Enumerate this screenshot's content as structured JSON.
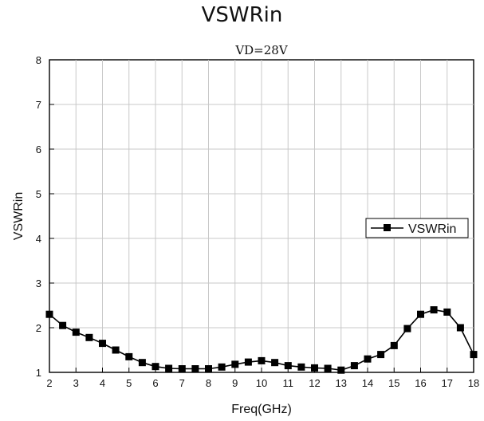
{
  "header": {
    "title": "VSWRin"
  },
  "chart_data": {
    "type": "line",
    "title": "VSWRin",
    "subtitle": "VD=28V",
    "xlabel": "Freq(GHz)",
    "ylabel": "VSWRin",
    "xlim": [
      2,
      18
    ],
    "ylim": [
      1,
      8
    ],
    "xticks": [
      2,
      3,
      4,
      5,
      6,
      7,
      8,
      9,
      10,
      11,
      12,
      13,
      14,
      15,
      16,
      17,
      18
    ],
    "yticks": [
      1,
      2,
      3,
      4,
      5,
      6,
      7,
      8
    ],
    "grid": true,
    "legend_position": "right-middle",
    "series": [
      {
        "name": "VSWRin",
        "color": "#000000",
        "marker": "square",
        "x": [
          2.0,
          2.5,
          3.0,
          3.5,
          4.0,
          4.5,
          5.0,
          5.5,
          6.0,
          6.5,
          7.0,
          7.5,
          8.0,
          8.5,
          9.0,
          9.5,
          10.0,
          10.5,
          11.0,
          11.5,
          12.0,
          12.5,
          13.0,
          13.5,
          14.0,
          14.5,
          15.0,
          15.5,
          16.0,
          16.5,
          17.0,
          17.5,
          18.0
        ],
        "y": [
          2.3,
          2.05,
          1.9,
          1.78,
          1.65,
          1.5,
          1.35,
          1.22,
          1.13,
          1.09,
          1.08,
          1.08,
          1.08,
          1.12,
          1.18,
          1.23,
          1.26,
          1.22,
          1.15,
          1.12,
          1.1,
          1.09,
          1.05,
          1.15,
          1.3,
          1.4,
          1.6,
          1.98,
          2.3,
          2.4,
          2.35,
          2.0,
          1.4
        ]
      }
    ]
  }
}
